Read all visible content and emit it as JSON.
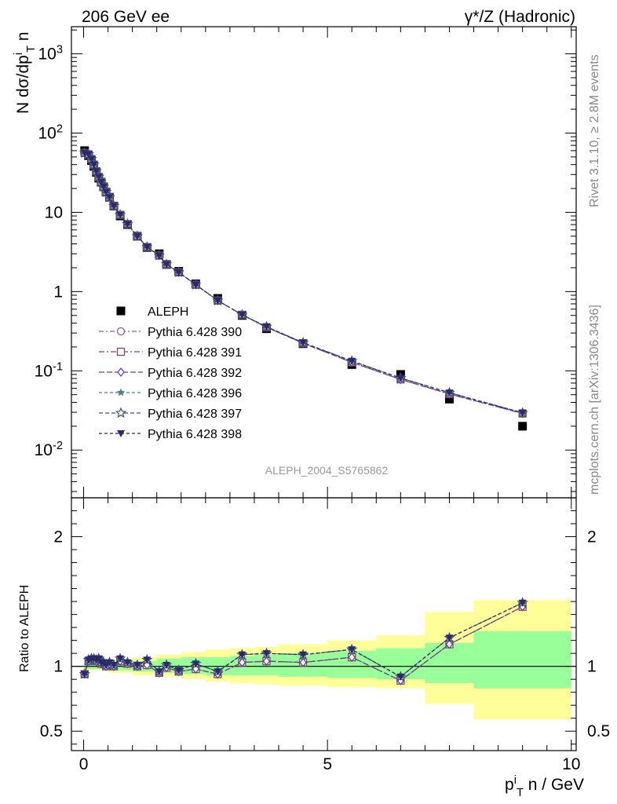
{
  "header": {
    "left": "206 GeV ee",
    "right": "γ*/Z (Hadronic)"
  },
  "side_labels": {
    "top": "Rivet 3.1.10, ≥ 2.8M events",
    "bottom": "mcplots.cern.ch [arXiv:1306.3436]"
  },
  "watermark": "ALEPH_2004_S5765862",
  "colors": {
    "band_inner": "#99ff99",
    "band_outer": "#ffff99",
    "data": "#000000",
    "p390": "#8b5f8b",
    "p391": "#7a4a5e",
    "p392": "#6a3d9a",
    "p396": "#4f7f8f",
    "p397": "#3b5478",
    "p398": "#2a2a6a"
  },
  "chart_data": [
    {
      "type": "scatter",
      "panel": "main",
      "ylabel": "N dσ/dp_T^i n",
      "yscale": "log",
      "ylim": [
        0.0025,
        2200
      ],
      "xlim": [
        -0.25,
        10.1
      ],
      "y_tick_labels": [
        "10^-2",
        "10^-1",
        "1",
        "10",
        "10^2",
        "10^3"
      ],
      "legend_position": "left-center",
      "x": [
        0.02,
        0.1,
        0.16,
        0.21,
        0.26,
        0.31,
        0.36,
        0.41,
        0.46,
        0.53,
        0.62,
        0.75,
        0.9,
        1.1,
        1.3,
        1.55,
        1.7,
        1.95,
        2.3,
        2.75,
        3.25,
        3.75,
        4.5,
        5.5,
        6.5,
        7.5,
        9.0
      ],
      "series": [
        {
          "name": "ALEPH",
          "style": "data",
          "values": [
            60,
            52,
            45,
            38,
            32,
            27,
            24,
            21,
            18,
            15.5,
            12,
            9,
            7,
            5,
            3.6,
            3.0,
            2.2,
            1.8,
            1.25,
            0.82,
            0.5,
            0.34,
            0.22,
            0.12,
            0.09,
            0.044,
            0.02
          ]
        },
        {
          "name": "Pythia 6.428 390",
          "style": "p390",
          "values": [
            56,
            54,
            47,
            40,
            33,
            28,
            24,
            21,
            18,
            15.5,
            12,
            9.3,
            7.1,
            5.0,
            3.65,
            2.85,
            2.2,
            1.75,
            1.22,
            0.77,
            0.51,
            0.355,
            0.223,
            0.128,
            0.078,
            0.051,
            0.029
          ]
        },
        {
          "name": "Pythia 6.428 391",
          "style": "p391",
          "values": [
            56,
            54,
            47,
            40,
            33,
            28,
            24,
            21,
            18,
            15.5,
            12,
            9.3,
            7.1,
            5.0,
            3.65,
            2.85,
            2.2,
            1.75,
            1.22,
            0.77,
            0.51,
            0.355,
            0.223,
            0.128,
            0.078,
            0.051,
            0.029
          ]
        },
        {
          "name": "Pythia 6.428 392",
          "style": "p392",
          "values": [
            56,
            54,
            47,
            40,
            33,
            28,
            24,
            21,
            18,
            15.5,
            12,
            9.3,
            7.1,
            5.0,
            3.65,
            2.85,
            2.2,
            1.75,
            1.22,
            0.77,
            0.51,
            0.355,
            0.223,
            0.128,
            0.078,
            0.051,
            0.029
          ]
        },
        {
          "name": "Pythia 6.428 396",
          "style": "p396",
          "values": [
            56,
            54,
            47,
            40,
            33,
            28,
            24,
            21,
            18,
            15.5,
            12,
            9.3,
            7.1,
            5.0,
            3.65,
            2.85,
            2.2,
            1.75,
            1.22,
            0.77,
            0.51,
            0.36,
            0.227,
            0.133,
            0.081,
            0.053,
            0.0295
          ]
        },
        {
          "name": "Pythia 6.428 397",
          "style": "p397",
          "values": [
            56,
            54,
            47,
            40,
            33,
            28,
            24,
            21,
            18,
            15.5,
            12,
            9.3,
            7.1,
            5.0,
            3.65,
            2.85,
            2.2,
            1.75,
            1.22,
            0.77,
            0.51,
            0.36,
            0.227,
            0.133,
            0.081,
            0.053,
            0.0295
          ]
        },
        {
          "name": "Pythia 6.428 398",
          "style": "p398",
          "values": [
            56,
            54,
            47,
            40,
            33,
            28,
            24,
            21,
            18,
            15.5,
            12,
            9.3,
            7.1,
            5.0,
            3.65,
            2.85,
            2.2,
            1.75,
            1.22,
            0.77,
            0.51,
            0.36,
            0.227,
            0.133,
            0.081,
            0.053,
            0.0295
          ]
        }
      ]
    },
    {
      "type": "line",
      "panel": "ratio",
      "xlabel": "p_T^i n / GeV",
      "ylabel": "Ratio to ALEPH",
      "ylim": [
        0.35,
        2.3
      ],
      "xlim": [
        -0.25,
        10.1
      ],
      "x_ticks": [
        0,
        5,
        10
      ],
      "y_ticks": [
        0.5,
        1,
        2
      ],
      "reference_line": 1,
      "x": [
        0.02,
        0.1,
        0.16,
        0.21,
        0.26,
        0.31,
        0.36,
        0.41,
        0.46,
        0.53,
        0.62,
        0.75,
        0.9,
        1.1,
        1.3,
        1.55,
        1.7,
        1.95,
        2.3,
        2.75,
        3.25,
        3.75,
        4.5,
        5.5,
        6.5,
        7.5,
        9.0
      ],
      "bands": {
        "edges": [
          0,
          0.5,
          1,
          1.5,
          2,
          2.5,
          3,
          3.5,
          4,
          5,
          6,
          7,
          8,
          10
        ],
        "inner_lo": [
          0.98,
          0.97,
          0.96,
          0.95,
          0.94,
          0.93,
          0.93,
          0.93,
          0.92,
          0.91,
          0.9,
          0.87,
          0.83,
          0.83
        ],
        "inner_hi": [
          1.02,
          1.03,
          1.04,
          1.06,
          1.07,
          1.07,
          1.08,
          1.09,
          1.1,
          1.12,
          1.14,
          1.18,
          1.27,
          1.27
        ],
        "outer_lo": [
          0.97,
          0.95,
          0.93,
          0.92,
          0.9,
          0.88,
          0.87,
          0.86,
          0.85,
          0.84,
          0.83,
          0.71,
          0.59,
          0.59
        ],
        "outer_hi": [
          1.03,
          1.05,
          1.07,
          1.09,
          1.11,
          1.13,
          1.14,
          1.15,
          1.17,
          1.2,
          1.24,
          1.42,
          1.51,
          1.51
        ]
      },
      "series": [
        {
          "name": "Pythia 6.428 390",
          "style": "p390",
          "values": [
            0.94,
            1.04,
            1.05,
            1.05,
            1.04,
            1.05,
            1.02,
            1.02,
            1.0,
            1.02,
            1.0,
            1.04,
            1.02,
            1.0,
            1.01,
            0.95,
            0.99,
            0.96,
            0.98,
            0.94,
            1.03,
            1.04,
            1.03,
            1.07,
            0.89,
            1.17,
            1.46
          ]
        },
        {
          "name": "Pythia 6.428 391",
          "style": "p391",
          "values": [
            0.94,
            1.04,
            1.05,
            1.05,
            1.04,
            1.05,
            1.02,
            1.02,
            1.0,
            1.02,
            1.0,
            1.04,
            1.02,
            1.0,
            1.01,
            0.95,
            0.99,
            0.96,
            0.98,
            0.94,
            1.03,
            1.04,
            1.03,
            1.07,
            0.89,
            1.17,
            1.46
          ]
        },
        {
          "name": "Pythia 6.428 392",
          "style": "p392",
          "values": [
            0.94,
            1.04,
            1.05,
            1.05,
            1.04,
            1.05,
            1.02,
            1.02,
            1.0,
            1.02,
            1.0,
            1.04,
            1.02,
            1.0,
            1.01,
            0.95,
            0.99,
            0.96,
            0.98,
            0.94,
            1.03,
            1.04,
            1.03,
            1.07,
            0.89,
            1.17,
            1.46
          ]
        },
        {
          "name": "Pythia 6.428 396",
          "style": "p396",
          "values": [
            0.94,
            1.05,
            1.06,
            1.06,
            1.05,
            1.06,
            1.03,
            1.03,
            1.01,
            1.03,
            1.01,
            1.06,
            1.03,
            1.01,
            1.05,
            0.96,
            1.01,
            0.97,
            1.02,
            0.96,
            1.09,
            1.1,
            1.09,
            1.13,
            0.92,
            1.22,
            1.49
          ]
        },
        {
          "name": "Pythia 6.428 397",
          "style": "p397",
          "values": [
            0.94,
            1.05,
            1.06,
            1.06,
            1.05,
            1.06,
            1.03,
            1.03,
            1.01,
            1.03,
            1.01,
            1.06,
            1.03,
            1.01,
            1.05,
            0.96,
            1.01,
            0.97,
            1.02,
            0.96,
            1.09,
            1.1,
            1.09,
            1.13,
            0.92,
            1.22,
            1.49
          ]
        },
        {
          "name": "Pythia 6.428 398",
          "style": "p398",
          "values": [
            0.94,
            1.05,
            1.06,
            1.06,
            1.05,
            1.06,
            1.03,
            1.03,
            1.01,
            1.03,
            1.01,
            1.06,
            1.03,
            1.01,
            1.05,
            0.96,
            1.01,
            0.97,
            1.02,
            0.96,
            1.09,
            1.1,
            1.09,
            1.13,
            0.92,
            1.22,
            1.49
          ]
        }
      ]
    }
  ]
}
